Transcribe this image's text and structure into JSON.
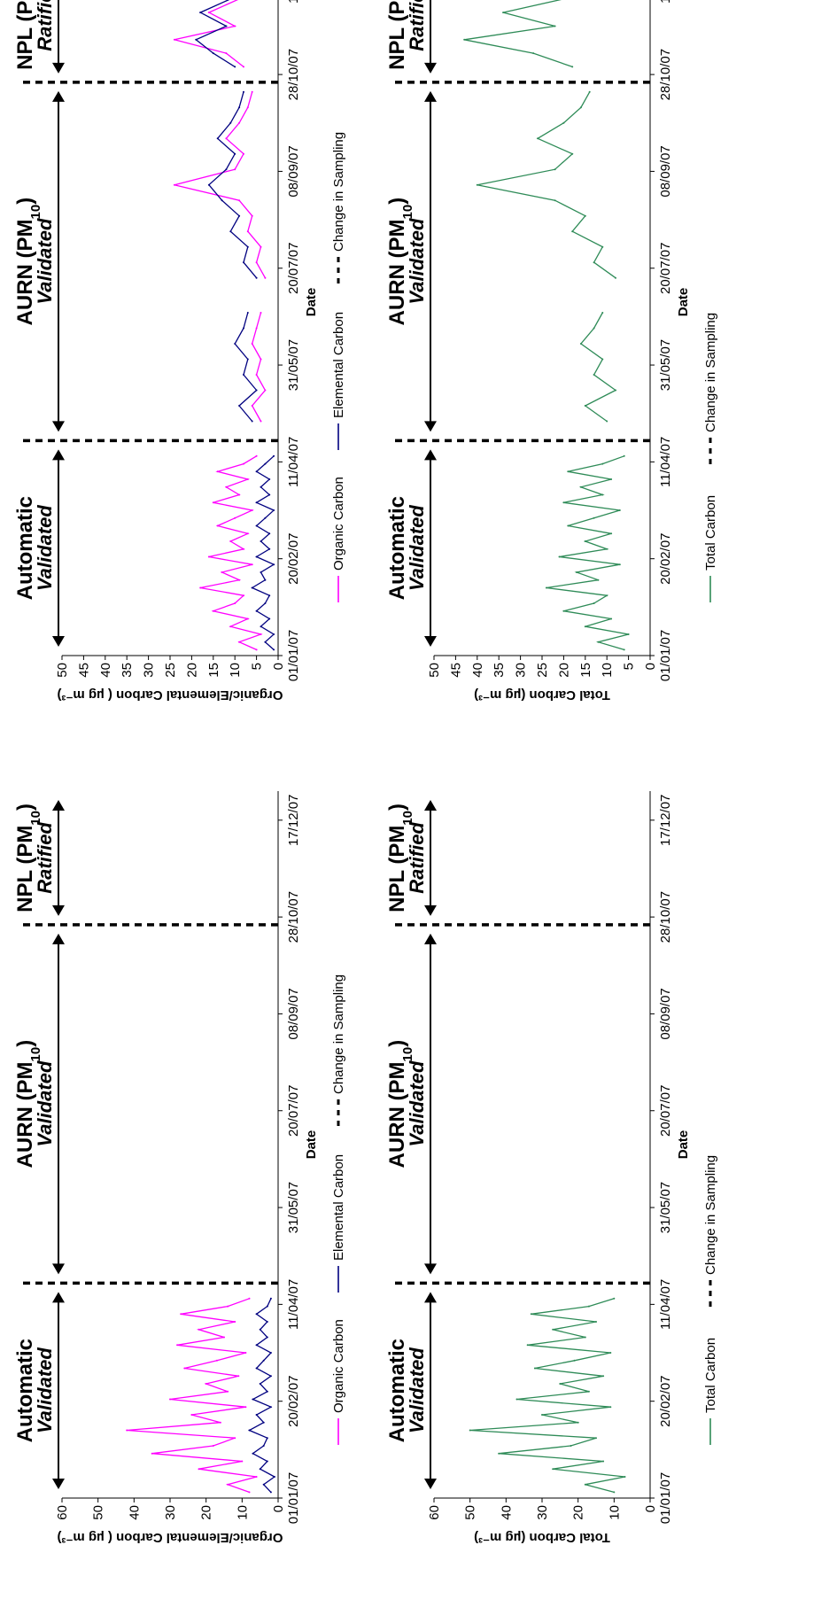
{
  "date_ticks": [
    "01/01/07",
    "20/02/07",
    "11/04/07",
    "31/05/07",
    "20/07/07",
    "08/09/07",
    "28/10/07",
    "17/12/07"
  ],
  "periods": [
    {
      "title": "Automatic",
      "status": "Validated"
    },
    {
      "title": "AURN (PM",
      "sub": "10",
      "close": ")",
      "status": "Validated"
    },
    {
      "title": "NPL (PM",
      "sub": "10",
      "close": ")",
      "status": "Ratified"
    }
  ],
  "legend_oc_ec": {
    "oc": "Organic Carbon",
    "ec": "Elemental Carbon",
    "change": "Change in Sampling"
  },
  "legend_tc": {
    "tc": "Total Carbon",
    "change": "Change in Sampling"
  },
  "colors": {
    "oc": "#ff00ff",
    "ec": "#000080",
    "tc": "#2e8b57",
    "change": "#000000"
  },
  "chart_data": [
    {
      "type": "line",
      "panel": "top-left",
      "xlabel": "Date",
      "ylabel": "Organic/Elemental Carbon ( µg m⁻³)",
      "ylim": [
        0,
        60
      ],
      "yticks": [
        0,
        10,
        20,
        30,
        40,
        50,
        60
      ],
      "xlim": [
        "01/01/07",
        "31/12/07"
      ],
      "change_in_sampling": [
        "22/04/07",
        "24/10/07"
      ],
      "series": [
        {
          "name": "Organic Carbon",
          "key": "oc",
          "segments": [
            {
              "x": [
                "04/01/07",
                "08/01/07",
                "12/01/07",
                "16/01/07",
                "20/01/07",
                "24/01/07",
                "28/01/07",
                "01/02/07",
                "05/02/07",
                "09/02/07",
                "13/02/07",
                "17/02/07",
                "21/02/07",
                "25/02/07",
                "01/03/07",
                "05/03/07",
                "09/03/07",
                "13/03/07",
                "17/03/07",
                "21/03/07",
                "25/03/07",
                "29/03/07",
                "02/04/07",
                "06/04/07",
                "10/04/07",
                "14/04/07"
              ],
              "y": [
                8,
                14,
                6,
                22,
                10,
                35,
                18,
                12,
                42,
                16,
                24,
                9,
                30,
                14,
                20,
                11,
                26,
                17,
                9,
                28,
                15,
                22,
                12,
                27,
                14,
                8
              ]
            }
          ]
        },
        {
          "name": "Elemental Carbon",
          "key": "ec",
          "segments": [
            {
              "x": [
                "04/01/07",
                "08/01/07",
                "12/01/07",
                "16/01/07",
                "20/01/07",
                "24/01/07",
                "28/01/07",
                "01/02/07",
                "05/02/07",
                "09/02/07",
                "13/02/07",
                "17/02/07",
                "21/02/07",
                "25/02/07",
                "01/03/07",
                "05/03/07",
                "09/03/07",
                "13/03/07",
                "17/03/07",
                "21/03/07",
                "25/03/07",
                "29/03/07",
                "02/04/07",
                "06/04/07",
                "10/04/07",
                "14/04/07"
              ],
              "y": [
                2,
                4,
                1,
                5,
                3,
                7,
                4,
                3,
                8,
                4,
                6,
                2,
                7,
                3,
                5,
                2,
                6,
                4,
                2,
                6,
                3,
                5,
                3,
                6,
                3,
                2
              ]
            }
          ]
        }
      ]
    },
    {
      "type": "line",
      "panel": "bottom-left",
      "xlabel": "Date",
      "ylabel": "Total Carbon (µg m⁻³)",
      "ylim": [
        0,
        60
      ],
      "yticks": [
        0,
        10,
        20,
        30,
        40,
        50,
        60
      ],
      "xlim": [
        "01/01/07",
        "31/12/07"
      ],
      "change_in_sampling": [
        "22/04/07",
        "24/10/07"
      ],
      "series": [
        {
          "name": "Total Carbon",
          "key": "tc",
          "segments": [
            {
              "x": [
                "04/01/07",
                "08/01/07",
                "12/01/07",
                "16/01/07",
                "20/01/07",
                "24/01/07",
                "28/01/07",
                "01/02/07",
                "05/02/07",
                "09/02/07",
                "13/02/07",
                "17/02/07",
                "21/02/07",
                "25/02/07",
                "01/03/07",
                "05/03/07",
                "09/03/07",
                "13/03/07",
                "17/03/07",
                "21/03/07",
                "25/03/07",
                "29/03/07",
                "02/04/07",
                "06/04/07",
                "10/04/07",
                "14/04/07"
              ],
              "y": [
                10,
                18,
                7,
                27,
                13,
                42,
                22,
                15,
                50,
                20,
                30,
                11,
                37,
                17,
                25,
                13,
                32,
                21,
                11,
                34,
                18,
                27,
                15,
                33,
                17,
                10
              ]
            }
          ]
        }
      ]
    },
    {
      "type": "line",
      "panel": "top-right",
      "xlabel": "Date",
      "ylabel": "Organic/Elemental Carbon ( µg m⁻³)",
      "ylim": [
        0,
        50
      ],
      "yticks": [
        0,
        5,
        10,
        15,
        20,
        25,
        30,
        35,
        40,
        45,
        50
      ],
      "xlim": [
        "01/01/07",
        "31/12/07"
      ],
      "change_in_sampling": [
        "22/04/07",
        "24/10/07"
      ],
      "series": [
        {
          "name": "Organic Carbon",
          "key": "oc",
          "segments": [
            {
              "x": [
                "04/01/07",
                "08/01/07",
                "12/01/07",
                "16/01/07",
                "20/01/07",
                "24/01/07",
                "28/01/07",
                "01/02/07",
                "05/02/07",
                "09/02/07",
                "13/02/07",
                "17/02/07",
                "21/02/07",
                "25/02/07",
                "01/03/07",
                "05/03/07",
                "09/03/07",
                "13/03/07",
                "17/03/07",
                "21/03/07",
                "25/03/07",
                "29/03/07",
                "02/04/07",
                "06/04/07",
                "10/04/07",
                "14/04/07"
              ],
              "y": [
                5,
                9,
                4,
                11,
                7,
                15,
                10,
                8,
                18,
                9,
                13,
                6,
                16,
                8,
                11,
                7,
                14,
                10,
                6,
                15,
                9,
                12,
                7,
                14,
                8,
                5
              ]
            },
            {
              "x": [
                "02/05/07",
                "10/05/07",
                "18/05/07",
                "26/05/07",
                "03/06/07",
                "11/06/07",
                "19/06/07",
                "27/06/07"
              ],
              "y": [
                4,
                6,
                3,
                5,
                4,
                6,
                5,
                4
              ]
            },
            {
              "x": [
                "15/07/07",
                "23/07/07",
                "31/07/07",
                "08/08/07",
                "16/08/07",
                "24/08/07",
                "01/09/07",
                "09/09/07",
                "17/09/07",
                "25/09/07",
                "03/10/07",
                "11/10/07",
                "19/10/07"
              ],
              "y": [
                3,
                5,
                4,
                7,
                6,
                9,
                24,
                10,
                8,
                12,
                9,
                7,
                6
              ]
            },
            {
              "x": [
                "01/11/07",
                "08/11/07",
                "15/11/07",
                "22/11/07",
                "29/11/07",
                "06/12/07",
                "13/12/07",
                "20/12/07",
                "27/12/07"
              ],
              "y": [
                8,
                12,
                24,
                10,
                16,
                9,
                20,
                11,
                7
              ]
            }
          ]
        },
        {
          "name": "Elemental Carbon",
          "key": "ec",
          "segments": [
            {
              "x": [
                "04/01/07",
                "08/01/07",
                "12/01/07",
                "16/01/07",
                "20/01/07",
                "24/01/07",
                "28/01/07",
                "01/02/07",
                "05/02/07",
                "09/02/07",
                "13/02/07",
                "17/02/07",
                "21/02/07",
                "25/02/07",
                "01/03/07",
                "05/03/07",
                "09/03/07",
                "13/03/07",
                "17/03/07",
                "21/03/07",
                "25/03/07",
                "29/03/07",
                "02/04/07",
                "06/04/07",
                "10/04/07",
                "14/04/07"
              ],
              "y": [
                1,
                3,
                1,
                4,
                2,
                5,
                3,
                2,
                6,
                3,
                4,
                1,
                5,
                2,
                4,
                2,
                5,
                3,
                1,
                5,
                2,
                4,
                2,
                5,
                3,
                1
              ]
            },
            {
              "x": [
                "02/05/07",
                "10/05/07",
                "18/05/07",
                "26/05/07",
                "03/06/07",
                "11/06/07",
                "19/06/07",
                "27/06/07"
              ],
              "y": [
                6,
                9,
                5,
                8,
                7,
                10,
                8,
                7
              ]
            },
            {
              "x": [
                "15/07/07",
                "23/07/07",
                "31/07/07",
                "08/08/07",
                "16/08/07",
                "24/08/07",
                "01/09/07",
                "09/09/07",
                "17/09/07",
                "25/09/07",
                "03/10/07",
                "11/10/07",
                "19/10/07"
              ],
              "y": [
                5,
                8,
                7,
                11,
                9,
                13,
                16,
                12,
                10,
                14,
                11,
                9,
                8
              ]
            },
            {
              "x": [
                "01/11/07",
                "08/11/07",
                "15/11/07",
                "22/11/07",
                "29/11/07",
                "06/12/07",
                "13/12/07",
                "20/12/07",
                "27/12/07"
              ],
              "y": [
                10,
                15,
                19,
                12,
                18,
                11,
                22,
                14,
                9
              ]
            }
          ]
        }
      ]
    },
    {
      "type": "line",
      "panel": "bottom-right",
      "xlabel": "Date",
      "ylabel": "Total Carbon (µg m⁻³)",
      "ylim": [
        0,
        50
      ],
      "yticks": [
        0,
        5,
        10,
        15,
        20,
        25,
        30,
        35,
        40,
        45,
        50
      ],
      "xlim": [
        "01/01/07",
        "31/12/07"
      ],
      "change_in_sampling": [
        "22/04/07",
        "24/10/07"
      ],
      "series": [
        {
          "name": "Total Carbon",
          "key": "tc",
          "segments": [
            {
              "x": [
                "04/01/07",
                "08/01/07",
                "12/01/07",
                "16/01/07",
                "20/01/07",
                "24/01/07",
                "28/01/07",
                "01/02/07",
                "05/02/07",
                "09/02/07",
                "13/02/07",
                "17/02/07",
                "21/02/07",
                "25/02/07",
                "01/03/07",
                "05/03/07",
                "09/03/07",
                "13/03/07",
                "17/03/07",
                "21/03/07",
                "25/03/07",
                "29/03/07",
                "02/04/07",
                "06/04/07",
                "10/04/07",
                "14/04/07"
              ],
              "y": [
                6,
                12,
                5,
                15,
                9,
                20,
                13,
                10,
                24,
                12,
                17,
                7,
                21,
                10,
                15,
                9,
                19,
                13,
                7,
                20,
                11,
                16,
                9,
                19,
                11,
                6
              ]
            },
            {
              "x": [
                "02/05/07",
                "10/05/07",
                "18/05/07",
                "26/05/07",
                "03/06/07",
                "11/06/07",
                "19/06/07",
                "27/06/07"
              ],
              "y": [
                10,
                15,
                8,
                13,
                11,
                16,
                13,
                11
              ]
            },
            {
              "x": [
                "15/07/07",
                "23/07/07",
                "31/07/07",
                "08/08/07",
                "16/08/07",
                "24/08/07",
                "01/09/07",
                "09/09/07",
                "17/09/07",
                "25/09/07",
                "03/10/07",
                "11/10/07",
                "19/10/07"
              ],
              "y": [
                8,
                13,
                11,
                18,
                15,
                22,
                40,
                22,
                18,
                26,
                20,
                16,
                14
              ]
            },
            {
              "x": [
                "01/11/07",
                "08/11/07",
                "15/11/07",
                "22/11/07",
                "29/11/07",
                "06/12/07",
                "13/12/07",
                "20/12/07",
                "27/12/07"
              ],
              "y": [
                18,
                27,
                43,
                22,
                34,
                20,
                42,
                25,
                16
              ]
            }
          ]
        }
      ]
    }
  ]
}
